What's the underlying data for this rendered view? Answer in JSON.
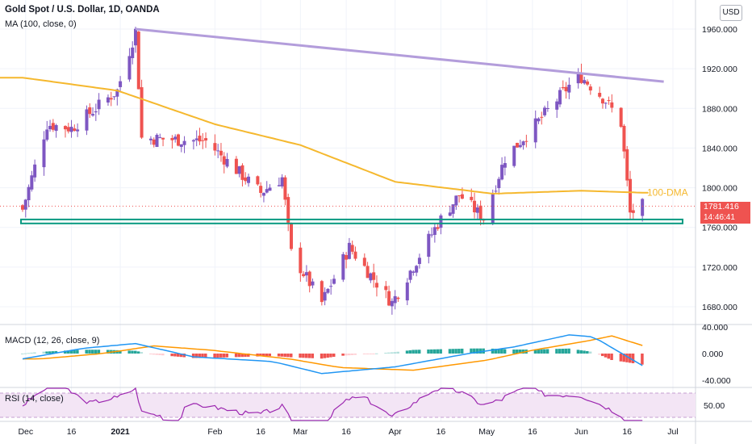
{
  "header": {
    "symbol": "Gold Spot / U.S. Dollar, 1D, OANDA",
    "ma_indicator": "MA (100, close, 0)",
    "currency_button": "USD"
  },
  "price_axis": {
    "ticks": [
      "1960.000",
      "1920.000",
      "1880.000",
      "1840.000",
      "1800.000",
      "1760.000",
      "1720.000",
      "1680.000"
    ]
  },
  "last_price": {
    "value": "1781.416",
    "countdown": "14:46:41",
    "color": "#ef5350"
  },
  "ma_label": "100-DMA",
  "macd": {
    "title": "MACD (12, 26, close, 9)",
    "ticks": [
      "40.000",
      "0.000",
      "-40.000"
    ]
  },
  "rsi": {
    "title": "RSI (14, close)",
    "ticks": [
      "50.00"
    ]
  },
  "time_axis": [
    "Dec",
    "16",
    "2021",
    "Feb",
    "16",
    "Mar",
    "16",
    "Apr",
    "16",
    "May",
    "16",
    "Jun",
    "16",
    "Jul"
  ],
  "colors": {
    "up": "#7e57c2",
    "down": "#ef5350",
    "ma": "#f5b82e",
    "trendline": "#b39ddb",
    "support": "#089981",
    "macd_line": "#2196f3",
    "signal_line": "#ff9800",
    "hist_pos": "#26a69a",
    "hist_pos_light": "#b2dfdb",
    "hist_neg": "#ef5350",
    "hist_neg_light": "#ffcdd2",
    "rsi_line": "#9c27b0",
    "rsi_band": "#f3e5f5"
  },
  "chart_data": {
    "type": "candlestick",
    "title": "Gold Spot / U.S. Dollar, 1D, OANDA",
    "ylim": [
      1665,
      1975
    ],
    "price_key_points": [
      {
        "date": "Nov-30",
        "close": 1778
      },
      {
        "date": "Dec-08",
        "close": 1864
      },
      {
        "date": "Dec-16",
        "close": 1860
      },
      {
        "date": "Dec-31",
        "close": 1898
      },
      {
        "date": "Jan-06",
        "close": 1958
      },
      {
        "date": "Jan-08",
        "close": 1850
      },
      {
        "date": "Jan-29",
        "close": 1847
      },
      {
        "date": "Feb-16",
        "close": 1795
      },
      {
        "date": "Feb-23",
        "close": 1810
      },
      {
        "date": "Feb-26",
        "close": 1734
      },
      {
        "date": "Mar-08",
        "close": 1684
      },
      {
        "date": "Mar-17",
        "close": 1740
      },
      {
        "date": "Mar-31",
        "close": 1684
      },
      {
        "date": "Apr-15",
        "close": 1764
      },
      {
        "date": "Apr-22",
        "close": 1793
      },
      {
        "date": "Apr-30",
        "close": 1769
      },
      {
        "date": "May-07",
        "close": 1830
      },
      {
        "date": "May-18",
        "close": 1867
      },
      {
        "date": "May-28",
        "close": 1903
      },
      {
        "date": "Jun-01",
        "close": 1912
      },
      {
        "date": "Jun-09",
        "close": 1888
      },
      {
        "date": "Jun-14",
        "close": 1865
      },
      {
        "date": "Jun-17",
        "close": 1774
      },
      {
        "date": "Jun-21",
        "close": 1782
      }
    ],
    "ma_100_key_points": [
      {
        "date": "Nov-30",
        "value": 1911
      },
      {
        "date": "Dec-31",
        "value": 1898
      },
      {
        "date": "Feb-01",
        "value": 1864
      },
      {
        "date": "Mar-01",
        "value": 1843
      },
      {
        "date": "Apr-01",
        "value": 1806
      },
      {
        "date": "May-03",
        "value": 1794
      },
      {
        "date": "Jun-01",
        "value": 1797
      },
      {
        "date": "Jun-21",
        "value": 1795
      }
    ],
    "trendline": {
      "from": {
        "date": "Jan-06",
        "value": 1960
      },
      "to": {
        "date": "Jun-28",
        "value": 1907
      }
    },
    "support_zone": {
      "from": 1764,
      "to": 1768
    },
    "macd_ylim": [
      -45,
      45
    ],
    "rsi_ylim": [
      20,
      80
    ],
    "rsi_band": [
      30,
      70
    ]
  }
}
